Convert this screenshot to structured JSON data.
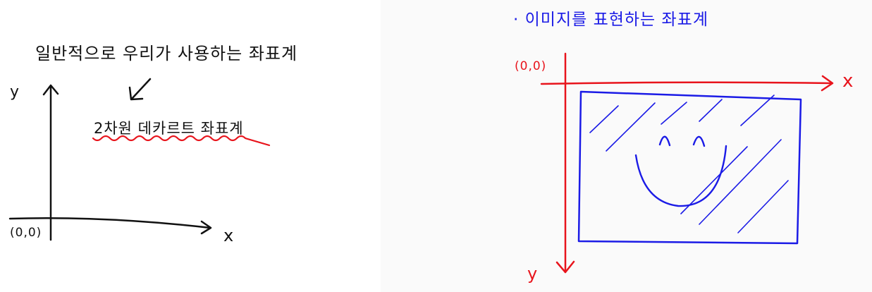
{
  "left": {
    "heading": "일반적으로 우리가 사용하는 좌표계",
    "label_cartesian": "2차원 데카르트 좌표계",
    "origin": "(0,0)",
    "x_axis": "x",
    "y_axis": "y",
    "ink_color": "#111111",
    "highlight_color": "#e8141c"
  },
  "right": {
    "heading": "· 이미지를 표현하는 좌표계",
    "origin": "(0,0)",
    "x_axis": "x",
    "y_axis": "y",
    "axis_color": "#e8141c",
    "image_color": "#1b1be6"
  }
}
